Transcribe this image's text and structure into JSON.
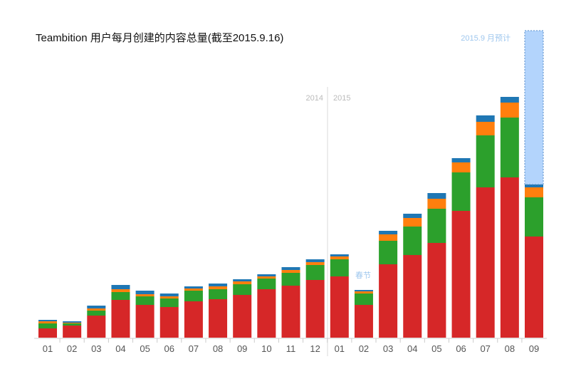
{
  "chart_data": {
    "type": "bar",
    "stacked": true,
    "title": "Teambition 用户每月创建的内容总量(截至2015.9.16)",
    "categories": [
      "01",
      "02",
      "03",
      "04",
      "05",
      "06",
      "07",
      "08",
      "09",
      "10",
      "11",
      "12",
      "01",
      "02",
      "03",
      "04",
      "05",
      "06",
      "07",
      "08",
      "09"
    ],
    "year_labels": [
      "2014",
      "2015"
    ],
    "annotations": {
      "spring_festival": "春节",
      "projection": "2015.9 月预计"
    },
    "colors": {
      "red": "#d62728",
      "green": "#2ca02c",
      "orange": "#ff7f0e",
      "blue": "#1f77b4",
      "projection_fill": "#b3d4fc",
      "projection_border": "#5a8ec9"
    },
    "series": [
      {
        "color": "red",
        "values": [
          13,
          17,
          31,
          53,
          46,
          43,
          51,
          54,
          60,
          68,
          73,
          81,
          86,
          46,
          103,
          116,
          133,
          178,
          211,
          225,
          142
        ]
      },
      {
        "color": "green",
        "values": [
          7,
          3,
          7,
          11,
          12,
          12,
          15,
          14,
          15,
          15,
          18,
          21,
          24,
          16,
          33,
          40,
          48,
          54,
          73,
          84,
          55
        ]
      },
      {
        "color": "orange",
        "values": [
          3,
          1,
          3,
          4,
          3,
          3,
          3,
          4,
          4,
          3,
          4,
          4,
          4,
          3,
          9,
          12,
          14,
          14,
          19,
          21,
          14
        ]
      },
      {
        "color": "blue",
        "values": [
          2,
          2,
          4,
          6,
          5,
          4,
          3,
          4,
          3,
          3,
          4,
          4,
          3,
          2,
          5,
          6,
          8,
          6,
          9,
          8,
          4
        ]
      }
    ],
    "projected_total": {
      "category_index": 20,
      "value": 431
    },
    "ylim": [
      0,
      431
    ],
    "grid": false,
    "legend": "none"
  }
}
